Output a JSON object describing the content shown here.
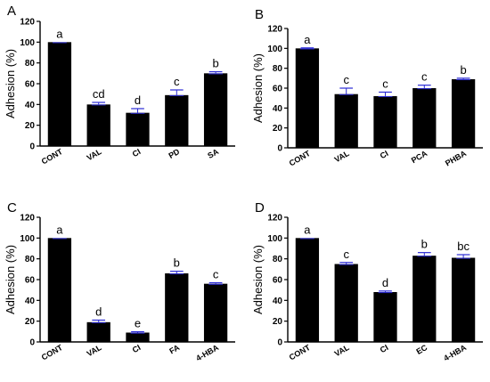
{
  "figure": {
    "colors": {
      "bar": "#000000",
      "error_bar": "#2b2bd6",
      "axis": "#000000"
    }
  },
  "chart_data": [
    {
      "type": "bar",
      "panel": "A",
      "ylabel": "Adhesion (%)",
      "ylim": [
        0,
        120
      ],
      "yticks": [
        0,
        20,
        40,
        60,
        80,
        100,
        120
      ],
      "categories": [
        "CONT",
        "VAL",
        "CI",
        "PD",
        "SA"
      ],
      "values": [
        100,
        40,
        32,
        49,
        70
      ],
      "errors": [
        0,
        2,
        4,
        5,
        1.5
      ],
      "significance": [
        "a",
        "cd",
        "d",
        "c",
        "b"
      ]
    },
    {
      "type": "bar",
      "panel": "B",
      "ylabel": "Adhesion (%)",
      "ylim": [
        0,
        120
      ],
      "yticks": [
        0,
        20,
        40,
        60,
        80,
        100,
        120
      ],
      "categories": [
        "CONT",
        "VAL",
        "CI",
        "PCA",
        "PHBA"
      ],
      "values": [
        100,
        54,
        52,
        60,
        69
      ],
      "errors": [
        0.5,
        6,
        4,
        3,
        1
      ],
      "significance": [
        "a",
        "c",
        "c",
        "c",
        "b"
      ]
    },
    {
      "type": "bar",
      "panel": "C",
      "ylabel": "Adhesion (%)",
      "ylim": [
        0,
        120
      ],
      "yticks": [
        0,
        20,
        40,
        60,
        80,
        100,
        120
      ],
      "categories": [
        "CONT",
        "VAL",
        "CI",
        "FA",
        "4-HBA"
      ],
      "values": [
        100,
        19,
        9,
        66,
        56
      ],
      "errors": [
        0,
        2,
        0.8,
        2,
        1
      ],
      "significance": [
        "a",
        "d",
        "e",
        "b",
        "c"
      ]
    },
    {
      "type": "bar",
      "panel": "D",
      "ylabel": "Adhesion (%)",
      "ylim": [
        0,
        120
      ],
      "yticks": [
        0,
        20,
        40,
        60,
        80,
        100,
        120
      ],
      "categories": [
        "CONT",
        "VAL",
        "CI",
        "EC",
        "4-HBA"
      ],
      "values": [
        100,
        75,
        48,
        83,
        81
      ],
      "errors": [
        0,
        1.5,
        1,
        3,
        3
      ],
      "significance": [
        "a",
        "c",
        "d",
        "b",
        "bc"
      ]
    }
  ]
}
